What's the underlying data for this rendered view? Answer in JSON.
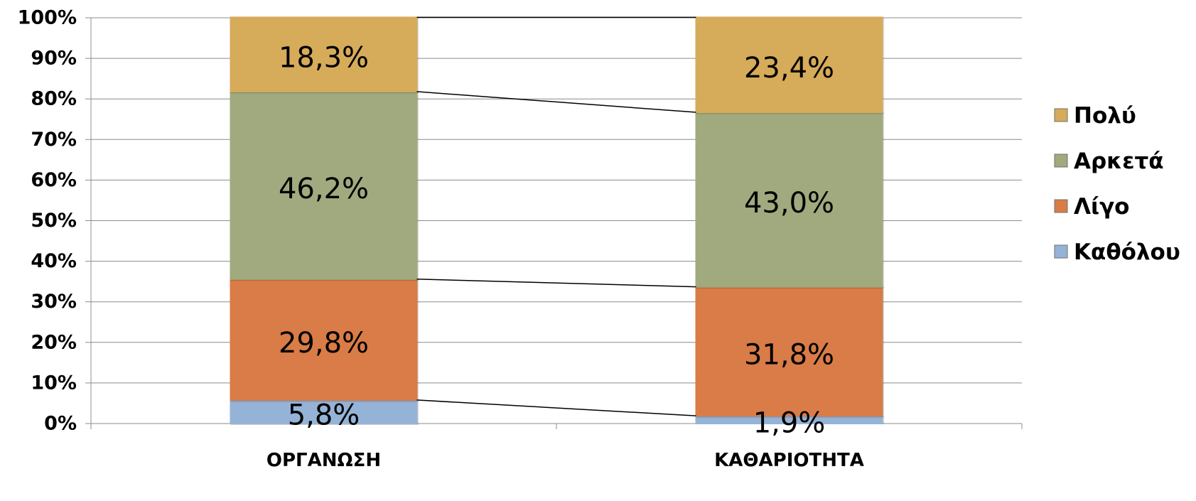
{
  "chart_data": {
    "type": "bar",
    "stacked": true,
    "normalized": true,
    "categories": [
      "ΟΡΓΑΝΩΣΗ",
      "ΚΑΘΑΡΙΟΤΗΤΑ"
    ],
    "series": [
      {
        "name": "Καθόλου",
        "values": [
          5.8,
          1.9
        ],
        "labels": [
          "5,8%",
          "1,9%"
        ],
        "color": "#95b3d7"
      },
      {
        "name": "Λίγο",
        "values": [
          29.8,
          31.8
        ],
        "labels": [
          "29,8%",
          "31,8%"
        ],
        "color": "#d97c47"
      },
      {
        "name": "Αρκετά",
        "values": [
          46.2,
          43.0
        ],
        "labels": [
          "46,2%",
          "43,0%"
        ],
        "color": "#a0aa7e"
      },
      {
        "name": "Πολύ",
        "values": [
          18.3,
          23.4
        ],
        "labels": [
          "18,3%",
          "23,4%"
        ],
        "color": "#d6ab5a"
      }
    ],
    "ylim": [
      0,
      100
    ],
    "yticks": [
      0,
      10,
      20,
      30,
      40,
      50,
      60,
      70,
      80,
      90,
      100
    ],
    "ytick_labels": [
      "0%",
      "10%",
      "20%",
      "30%",
      "40%",
      "50%",
      "60%",
      "70%",
      "80%",
      "90%",
      "100%"
    ],
    "grid": true,
    "series_lines": true,
    "legend_position": "right",
    "title": "",
    "xlabel": "",
    "ylabel": ""
  }
}
